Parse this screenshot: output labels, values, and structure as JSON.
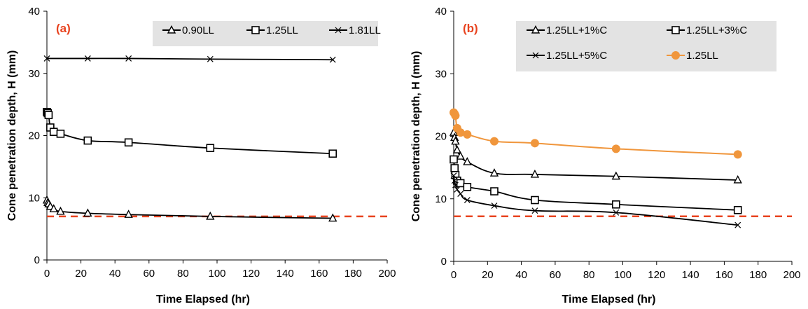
{
  "colors": {
    "black": "#000000",
    "orange": "#f0963c",
    "red_dash": "#e8431f",
    "legend_bg": "#e3e3e3"
  },
  "chart_data": [
    {
      "type": "line",
      "panel_label": "(a)",
      "xlabel": "Time Elapsed (hr)",
      "ylabel": "Cone penetration depth, H (mm)",
      "xlim": [
        0,
        200
      ],
      "ylim": [
        0,
        40
      ],
      "x_ticks": [
        "0",
        "20",
        "40",
        "60",
        "80",
        "100",
        "120",
        "140",
        "160",
        "180",
        "200"
      ],
      "y_ticks": [
        "0",
        "10",
        "20",
        "30",
        "40"
      ],
      "reference_line": {
        "y": 7,
        "style": "dashed",
        "color": "#e8431f"
      },
      "legend_position": "top-right",
      "series": [
        {
          "name": "0.90LL",
          "marker": "triangle",
          "color": "#000000",
          "x": [
            0,
            0.5,
            1,
            2,
            4,
            8,
            24,
            48,
            96,
            168
          ],
          "y": [
            9.6,
            9.2,
            9.0,
            8.6,
            8.2,
            7.8,
            7.5,
            7.3,
            7.0,
            6.7
          ]
        },
        {
          "name": "1.25LL",
          "marker": "square",
          "color": "#000000",
          "x": [
            0,
            0.5,
            1,
            2,
            4,
            8,
            24,
            48,
            96,
            168
          ],
          "y": [
            23.8,
            23.6,
            23.3,
            21.3,
            20.6,
            20.3,
            19.2,
            18.9,
            18.0,
            17.1
          ]
        },
        {
          "name": "1.81LL",
          "marker": "x",
          "color": "#000000",
          "x": [
            0,
            24,
            48,
            96,
            168
          ],
          "y": [
            32.4,
            32.4,
            32.4,
            32.3,
            32.2
          ]
        }
      ]
    },
    {
      "type": "line",
      "panel_label": "(b)",
      "xlabel": "Time Elapsed (hr)",
      "ylabel": "Cone penetration depth, H (mm)",
      "xlim": [
        0,
        200
      ],
      "ylim": [
        0,
        40
      ],
      "x_ticks": [
        "0",
        "20",
        "40",
        "60",
        "80",
        "100",
        "120",
        "140",
        "160",
        "180",
        "200"
      ],
      "y_ticks": [
        "0",
        "10",
        "20",
        "30",
        "40"
      ],
      "reference_line": {
        "y": 7.2,
        "style": "dashed",
        "color": "#e8431f"
      },
      "legend_position": "top-right",
      "series": [
        {
          "name": "1.25LL+1%C",
          "marker": "triangle",
          "color": "#000000",
          "x": [
            0,
            0.5,
            1,
            2,
            4,
            8,
            24,
            48,
            96,
            168
          ],
          "y": [
            20.6,
            19.8,
            19.2,
            17.8,
            16.8,
            15.9,
            14.1,
            13.9,
            13.6,
            13.0
          ]
        },
        {
          "name": "1.25LL+3%C",
          "marker": "square",
          "color": "#000000",
          "x": [
            0,
            0.5,
            1,
            2,
            4,
            8,
            24,
            48,
            96,
            168
          ],
          "y": [
            16.3,
            14.9,
            13.8,
            12.9,
            12.5,
            11.9,
            11.2,
            9.8,
            9.1,
            8.2
          ]
        },
        {
          "name": "1.25LL+5%C",
          "marker": "x",
          "color": "#000000",
          "x": [
            0,
            0.5,
            1,
            2,
            4,
            8,
            24,
            48,
            96,
            168
          ],
          "y": [
            13.7,
            12.9,
            12.2,
            11.5,
            10.8,
            9.8,
            8.9,
            8.1,
            7.8,
            5.8
          ]
        },
        {
          "name": "1.25LL",
          "marker": "circle",
          "color": "#f0963c",
          "x": [
            0,
            0.5,
            1,
            2,
            4,
            8,
            24,
            48,
            96,
            168
          ],
          "y": [
            23.8,
            23.6,
            23.3,
            21.3,
            20.6,
            20.3,
            19.2,
            18.9,
            18.0,
            17.1
          ]
        }
      ]
    }
  ]
}
